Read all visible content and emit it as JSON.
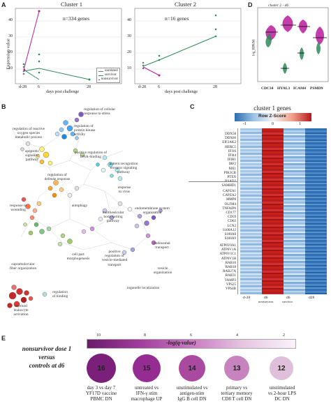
{
  "panels": {
    "a": "A",
    "b": "B",
    "c": "C",
    "d": "D",
    "e": "E"
  },
  "panelA": {
    "ylabel": "Expression value",
    "xlabel": "days post challenge",
    "legend": [
      "unrelated",
      "survivor",
      "nonsurvivor"
    ],
    "cluster1": {
      "title": "Cluster 1",
      "n": "n=334 genes"
    },
    "cluster2": {
      "title": "Cluster 2",
      "n": "n=16 genes"
    },
    "xticks": [
      "d-28",
      "6",
      "28"
    ],
    "yticks1": [
      "10",
      "20",
      "30",
      "40"
    ],
    "yticks2": [
      "10",
      "20",
      "30",
      "40"
    ],
    "colors": {
      "survivor": "#2e8b57",
      "nonsurvivor": "#b81c9c",
      "unrelated": "#7a7a7a"
    }
  },
  "panelD": {
    "title": "cluster 2 - d6",
    "ylabel": "log_RPKM",
    "genes": [
      "CDC34",
      "HYAL3",
      "ICAM4",
      "PSMD9"
    ]
  },
  "panelB": {
    "labels": [
      "regulation of cellular\nresponse to stress",
      "regulation of\nprotein kinase\nactivity",
      "regulation of reactive\noxygen species\nmetabolic process",
      "positive regulation of\nDNA-binding",
      "apoptotic\nsignaling\npathway",
      "pattern recognition\nreceptor signaling\npathway",
      "response\nto virus",
      "regulation of\ndefense response",
      "response to\nwounding",
      "autophagy",
      "endomembrane system\norganization",
      "multivesicular\nbody sorting\npathway",
      "supramolecular\nfiber organization",
      "cell part\nmorphogenesis",
      "positive\nregulation of\nvesicle-mediated\ntransport",
      "endosomal\ntransport",
      "vesicle\norganization",
      "organelle localization",
      "myeloid\nleukocyte\nactivation",
      "regulation\nof binding"
    ]
  },
  "panelC": {
    "title": "cluster 1 genes",
    "colorkey_label": "Row Z-Score",
    "colorkey_ticks": [
      "-1",
      "0",
      "1"
    ],
    "genes_top": [
      "DDX58",
      "DDX60",
      "EIF2AK2",
      "HERC5",
      "IFI16",
      "IFI44",
      "IFIH1",
      "IRF2",
      "MX1",
      "PIK3CB",
      "PTEN",
      "RSAD2",
      "SAMHD1"
    ],
    "genes_mid": [
      "CAPZA1",
      "CAPZA2",
      "MMP8",
      "OLFM4",
      "TNFAIP6",
      "CD177",
      "CD59",
      "CD63",
      "LCN2",
      "S100A12",
      "S100A8",
      "S100A9"
    ],
    "genes_bot": [
      "ATP6V0A1",
      "ATP6V1A",
      "ATP6V1C1",
      "ATP6V1H",
      "RAB10",
      "RAB18",
      "RAB27A",
      "RAB31",
      "VAMP3",
      "VPS25",
      "VPS4B"
    ],
    "first_gene": "DDX58",
    "cols": [
      "d-28",
      "d6",
      "d6",
      "d28"
    ],
    "col_sub": [
      "",
      "nonsurvivor",
      "survivor",
      ""
    ]
  },
  "panelE": {
    "title_lines": [
      "nonsurvivor dose 1",
      "versus",
      "controls at d6"
    ],
    "scale_label": "-log(q-value)",
    "scale_ticks": [
      "10",
      "8",
      "6",
      "4",
      "2"
    ],
    "items": [
      {
        "value": "16",
        "label": "day 3 vs day 7\nYF17D vaccine\nPBMC DN",
        "color": "#7a1f7a"
      },
      {
        "value": "15",
        "label": "untreated vs\nIFN-γ stim\nmacrophage UP",
        "color": "#942c92"
      },
      {
        "value": "14",
        "label": "unstimulated vs\nantigen-stim\nIgG B cell DN",
        "color": "#a9499f"
      },
      {
        "value": "13",
        "label": "primary vs\ntertiary memory\nCD8 T cell DN",
        "color": "#c683bd"
      },
      {
        "value": "12",
        "label": "unstimulated\nvs 2-hour LPS\nDC DN",
        "color": "#e0bfdb"
      }
    ]
  }
}
